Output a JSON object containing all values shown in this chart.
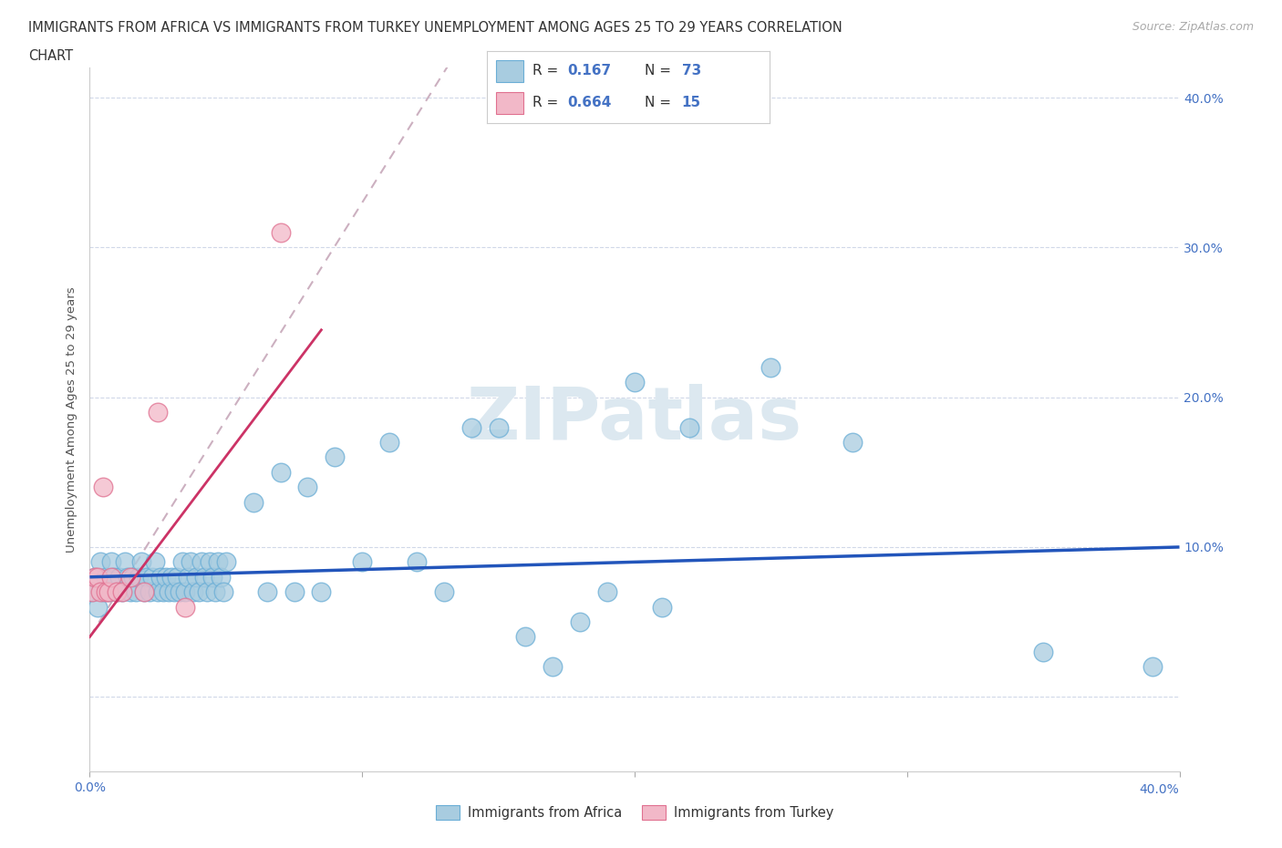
{
  "title_line1": "IMMIGRANTS FROM AFRICA VS IMMIGRANTS FROM TURKEY UNEMPLOYMENT AMONG AGES 25 TO 29 YEARS CORRELATION",
  "title_line2": "CHART",
  "source_text": "Source: ZipAtlas.com",
  "ylabel": "Unemployment Among Ages 25 to 29 years",
  "xlim": [
    0.0,
    0.4
  ],
  "ylim": [
    -0.05,
    0.42
  ],
  "xticks": [
    0.0,
    0.1,
    0.2,
    0.3,
    0.4
  ],
  "yticks": [
    0.0,
    0.1,
    0.2,
    0.3,
    0.4
  ],
  "xticklabels_bottom": [
    "0.0%",
    "",
    "",
    "",
    "40.0%"
  ],
  "xticklabels_top": [],
  "yticklabels_right": [
    "",
    "10.0%",
    "20.0%",
    "30.0%",
    "40.0%"
  ],
  "watermark": "ZIPatlas",
  "africa_color": "#a8cce0",
  "africa_edge_color": "#6aaed6",
  "turkey_color": "#f2b8c8",
  "turkey_edge_color": "#e07090",
  "africa_line_color": "#2255bb",
  "turkey_line_color": "#cc3366",
  "turkey_dash_color": "#ccb0c0",
  "background_color": "#ffffff",
  "legend_label1": "Immigrants from Africa",
  "legend_label2": "Immigrants from Turkey",
  "africa_scatter_x": [
    0.001,
    0.002,
    0.003,
    0.004,
    0.005,
    0.006,
    0.007,
    0.008,
    0.009,
    0.01,
    0.011,
    0.012,
    0.013,
    0.014,
    0.015,
    0.016,
    0.017,
    0.018,
    0.019,
    0.02,
    0.021,
    0.022,
    0.023,
    0.024,
    0.025,
    0.026,
    0.027,
    0.028,
    0.029,
    0.03,
    0.031,
    0.032,
    0.033,
    0.034,
    0.035,
    0.036,
    0.037,
    0.038,
    0.039,
    0.04,
    0.041,
    0.042,
    0.043,
    0.044,
    0.045,
    0.046,
    0.047,
    0.048,
    0.049,
    0.05,
    0.06,
    0.065,
    0.07,
    0.075,
    0.08,
    0.085,
    0.09,
    0.1,
    0.11,
    0.12,
    0.13,
    0.14,
    0.15,
    0.16,
    0.17,
    0.18,
    0.19,
    0.2,
    0.21,
    0.22,
    0.25,
    0.28,
    0.35,
    0.39
  ],
  "africa_scatter_y": [
    0.07,
    0.08,
    0.06,
    0.09,
    0.07,
    0.08,
    0.07,
    0.09,
    0.08,
    0.07,
    0.08,
    0.07,
    0.09,
    0.08,
    0.07,
    0.08,
    0.07,
    0.08,
    0.09,
    0.07,
    0.08,
    0.07,
    0.08,
    0.09,
    0.07,
    0.08,
    0.07,
    0.08,
    0.07,
    0.08,
    0.07,
    0.08,
    0.07,
    0.09,
    0.07,
    0.08,
    0.09,
    0.07,
    0.08,
    0.07,
    0.09,
    0.08,
    0.07,
    0.09,
    0.08,
    0.07,
    0.09,
    0.08,
    0.07,
    0.09,
    0.13,
    0.07,
    0.15,
    0.07,
    0.14,
    0.07,
    0.16,
    0.09,
    0.17,
    0.09,
    0.07,
    0.18,
    0.18,
    0.04,
    0.02,
    0.05,
    0.07,
    0.21,
    0.06,
    0.18,
    0.22,
    0.17,
    0.03,
    0.02
  ],
  "turkey_scatter_x": [
    0.001,
    0.002,
    0.003,
    0.004,
    0.005,
    0.006,
    0.007,
    0.008,
    0.01,
    0.012,
    0.015,
    0.02,
    0.025,
    0.035,
    0.07
  ],
  "turkey_scatter_y": [
    0.07,
    0.08,
    0.08,
    0.07,
    0.14,
    0.07,
    0.07,
    0.08,
    0.07,
    0.07,
    0.08,
    0.07,
    0.19,
    0.06,
    0.31
  ],
  "africa_trendline": [
    0.0,
    0.08,
    0.4,
    0.1
  ],
  "turkey_trendline_solid": [
    0.0,
    0.04,
    0.085,
    0.245
  ],
  "turkey_trendline_dash_full": [
    0.0,
    0.04,
    0.4,
    1.2
  ]
}
